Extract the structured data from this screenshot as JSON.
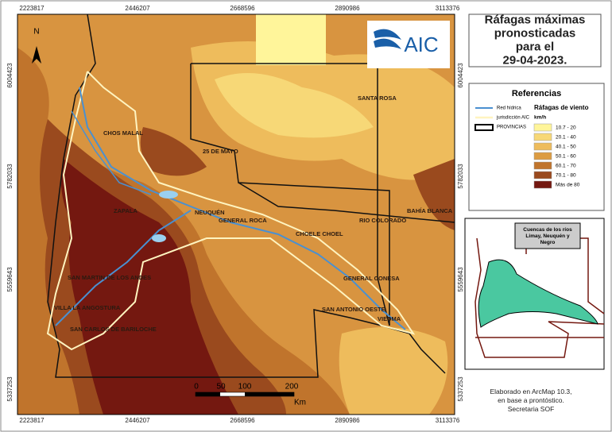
{
  "map": {
    "coords_x": [
      2223817,
      2446207,
      2668596,
      2890986,
      3113376
    ],
    "coords_y": [
      6004423,
      5782033,
      5559643,
      5337253
    ],
    "north": "N",
    "places": [
      "CHOS MALAL",
      "25 DE MAYO",
      "SANTA ROSA",
      "ZAPALA",
      "NEUQUÉN",
      "GENERAL ROCA",
      "CHOELE CHOEL",
      "RIO COLORADO",
      "BAHÍA BLANCA",
      "SAN MARTIN DE LOS ANDES",
      "GENERAL CONESA",
      "VILLA LA ANGOSTURA",
      "SAN ANTONIO OESTE",
      "VIEDMA",
      "SAN CARLOS DE BARILOCHE"
    ],
    "scale": {
      "labels": [
        "0",
        "50",
        "100",
        "200"
      ],
      "unit": "Km"
    }
  },
  "logo": "AIC",
  "title": "Ráfagas máximas pronosticadas para el 29-04-2023.",
  "legend": {
    "title": "Referencias",
    "lines": [
      "Red hídrica",
      "jurisdicción AIC",
      "PROVINCIAS"
    ],
    "classes_title": "Ráfagas de viento",
    "unit": "km/h",
    "classes": [
      {
        "label": "10.7 - 20",
        "color": "#fff59a"
      },
      {
        "label": "20.1 - 40",
        "color": "#f7d877"
      },
      {
        "label": "40.1 - 50",
        "color": "#eebc5c"
      },
      {
        "label": "50.1 - 60",
        "color": "#dc9c42"
      },
      {
        "label": "60.1 - 70",
        "color": "#c0742c"
      },
      {
        "label": "70.1 - 80",
        "color": "#9a4a1e"
      },
      {
        "label": "Más de 80",
        "color": "#741810"
      }
    ]
  },
  "inset": {
    "title": "Cuencas de los ríos Limay, Neuquén y Negro"
  },
  "credit": "Elaborado en ArcMap 10.3, en base a prontóstico. Secretaria SOF"
}
